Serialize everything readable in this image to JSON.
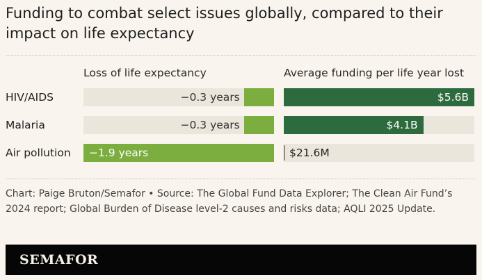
{
  "title": "Funding to combat select issues globally, compared to their impact on life expectancy",
  "chart_data": {
    "type": "bar",
    "categories": [
      "HIV/AIDS",
      "Malaria",
      "Air pollution"
    ],
    "series": [
      {
        "name": "Loss of life expectancy",
        "unit": "years",
        "values": [
          -0.3,
          -0.3,
          -1.9
        ],
        "labels": [
          "−0.3 years",
          "−0.3 years",
          "−1.9 years"
        ],
        "xlim": [
          -1.9,
          0
        ],
        "color": "#7bad3f"
      },
      {
        "name": "Average funding per life year lost",
        "unit": "USD",
        "values": [
          5600000000,
          4100000000,
          21600000
        ],
        "labels": [
          "$5.6B",
          "$4.1B",
          "$21.6M"
        ],
        "xlim": [
          0,
          5600000000
        ],
        "color": "#2d6a3e"
      }
    ],
    "title": "Funding to combat select issues globally, compared to their impact on life expectancy"
  },
  "source": "Chart: Paige Bruton/Semafor • Source: The Global Fund Data Explorer; The Clean Air Fund’s 2024 report; Global Burden of Disease level-2 causes and risks data; AQLI 2025 Update.",
  "footer": {
    "brand": "SEMAFOR"
  },
  "colors": {
    "background": "#f9f5ee",
    "track": "#ebe6dc",
    "loss_bar": "#7bad3f",
    "funding_bar": "#2d6a3e",
    "footer_bg": "#060606"
  }
}
